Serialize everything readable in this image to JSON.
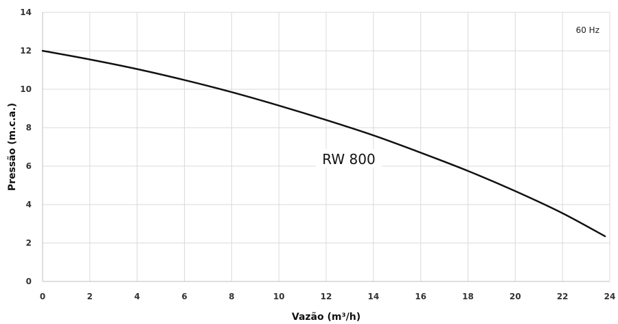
{
  "chart_data": {
    "type": "line",
    "xlabel": "Vazão (m³/h)",
    "ylabel": "Pressão (m.c.a.)",
    "xlim": [
      0,
      24
    ],
    "ylim": [
      0,
      14
    ],
    "xticks": [
      0,
      2,
      4,
      6,
      8,
      10,
      12,
      14,
      16,
      18,
      20,
      22,
      24
    ],
    "yticks": [
      0,
      2,
      4,
      6,
      8,
      10,
      12,
      14
    ],
    "grid": true,
    "annotation": "60 Hz",
    "series": [
      {
        "name": "RW 800",
        "color": "#111111",
        "x": [
          0,
          2,
          4,
          6,
          8,
          10,
          12,
          14,
          16,
          18,
          20,
          22,
          23.8
        ],
        "y": [
          12.0,
          11.55,
          11.05,
          10.48,
          9.85,
          9.15,
          8.4,
          7.6,
          6.7,
          5.75,
          4.7,
          3.55,
          2.35
        ]
      }
    ]
  }
}
